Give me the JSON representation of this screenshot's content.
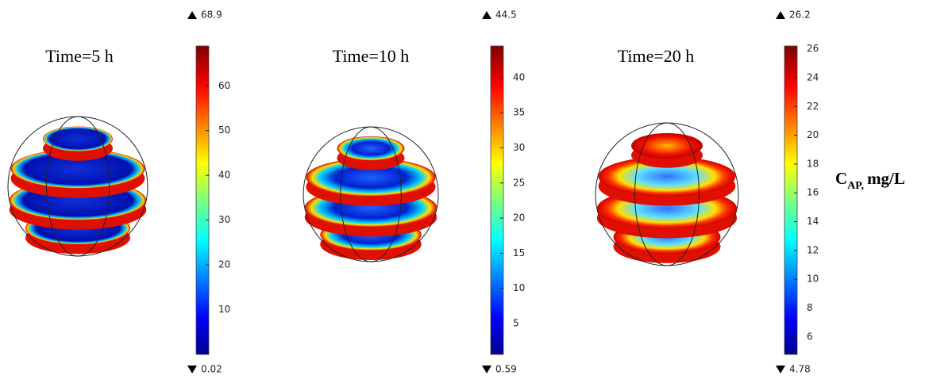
{
  "panels": [
    {
      "title": "Time=5 h",
      "max": 68.9,
      "min": 0.02,
      "ticks": [
        10,
        20,
        30,
        40,
        50,
        60
      ]
    },
    {
      "title": "Time=10 h",
      "max": 44.5,
      "min": 0.59,
      "ticks": [
        5,
        10,
        15,
        20,
        25,
        30,
        35,
        40
      ]
    },
    {
      "title": "Time=20 h",
      "max": 26.2,
      "min": 4.78,
      "ticks": [
        6,
        8,
        10,
        12,
        14,
        16,
        18,
        20,
        22,
        24,
        26
      ]
    }
  ],
  "legend_label": {
    "main": "C",
    "sub": "AP,",
    "rest": "mg/L"
  }
}
